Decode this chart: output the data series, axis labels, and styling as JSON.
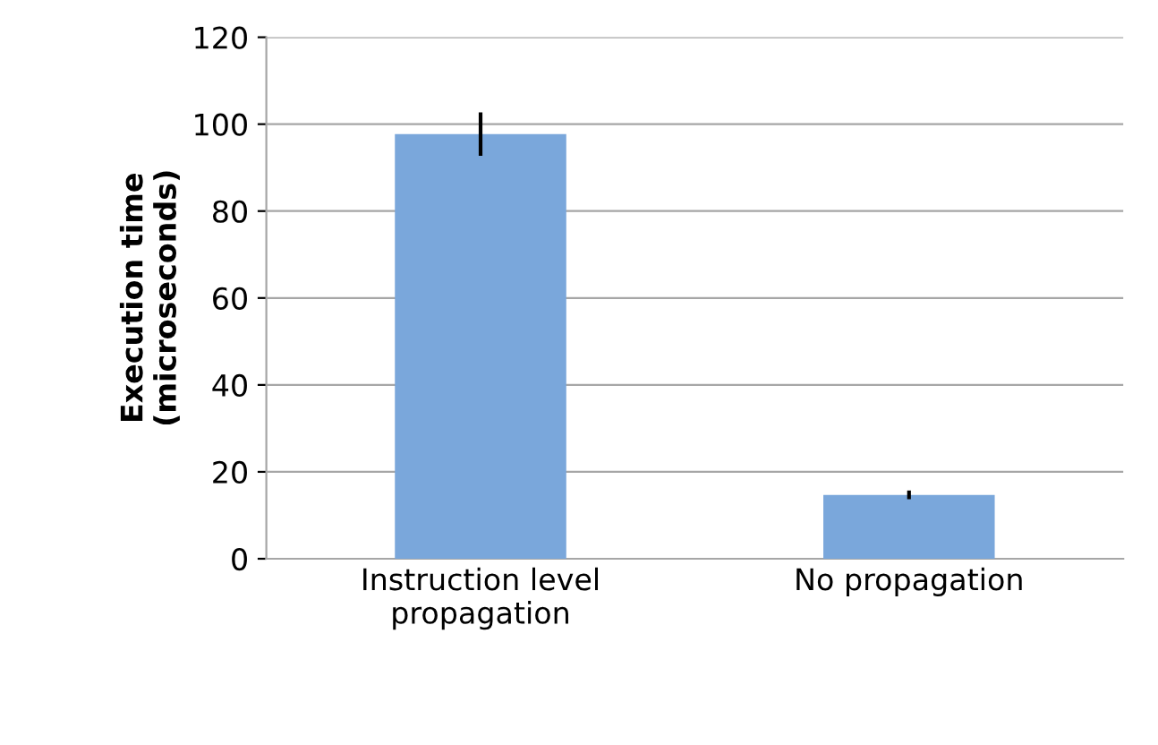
{
  "chart_data": {
    "type": "bar",
    "ylabel": "Execution time\n(microseconds)",
    "categories": [
      "Instruction level\npropagation",
      "No propagation"
    ],
    "values": [
      97.7,
      14.7
    ],
    "errors": [
      5,
      1
    ],
    "color": "#7aa7db",
    "ylim": [
      0,
      120
    ],
    "yticks": [
      0,
      20,
      40,
      60,
      80,
      100,
      120
    ],
    "grid": "y",
    "legend": false
  }
}
